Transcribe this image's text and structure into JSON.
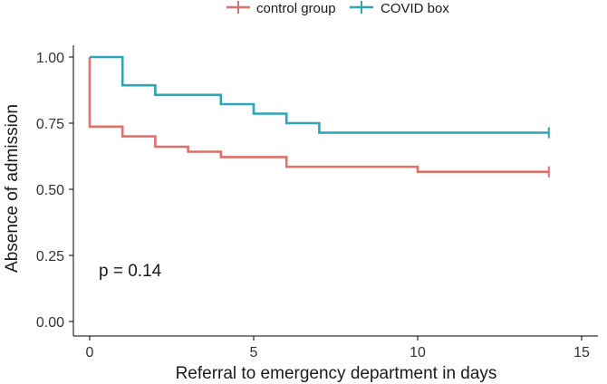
{
  "chart_data": {
    "type": "line",
    "subtype": "step",
    "title": "",
    "xlabel": "Referral to emergency department in days",
    "ylabel": "Absence of admission",
    "xlim": [
      0,
      15
    ],
    "ylim": [
      0,
      1
    ],
    "xticks": [
      0,
      5,
      10,
      15
    ],
    "yticks": [
      0.0,
      0.25,
      0.5,
      0.75,
      1.0
    ],
    "xtick_labels": [
      "0",
      "5",
      "10",
      "15"
    ],
    "ytick_labels": [
      "0.00",
      "0.25",
      "0.50",
      "0.75",
      "1.00"
    ],
    "legend_position": "top",
    "annotation": "p = 0.14",
    "series": [
      {
        "name": "control group",
        "color": "#e0706a",
        "points": [
          [
            0,
            1.0
          ],
          [
            0,
            0.737
          ],
          [
            1,
            0.737
          ],
          [
            1,
            0.7
          ],
          [
            2,
            0.7
          ],
          [
            2,
            0.661
          ],
          [
            3,
            0.661
          ],
          [
            3,
            0.642
          ],
          [
            4,
            0.642
          ],
          [
            4,
            0.622
          ],
          [
            6,
            0.622
          ],
          [
            6,
            0.585
          ],
          [
            10,
            0.585
          ],
          [
            10,
            0.566
          ],
          [
            14,
            0.566
          ]
        ],
        "censor": [
          [
            14,
            0.566
          ]
        ]
      },
      {
        "name": "COVID box",
        "color": "#2aa6b4",
        "points": [
          [
            0,
            1.0
          ],
          [
            1,
            1.0
          ],
          [
            1,
            0.893
          ],
          [
            2,
            0.893
          ],
          [
            2,
            0.857
          ],
          [
            4,
            0.857
          ],
          [
            4,
            0.822
          ],
          [
            5,
            0.822
          ],
          [
            5,
            0.786
          ],
          [
            6,
            0.786
          ],
          [
            6,
            0.75
          ],
          [
            7,
            0.75
          ],
          [
            7,
            0.714
          ],
          [
            14,
            0.714
          ]
        ],
        "censor": [
          [
            14,
            0.714
          ]
        ]
      }
    ]
  }
}
